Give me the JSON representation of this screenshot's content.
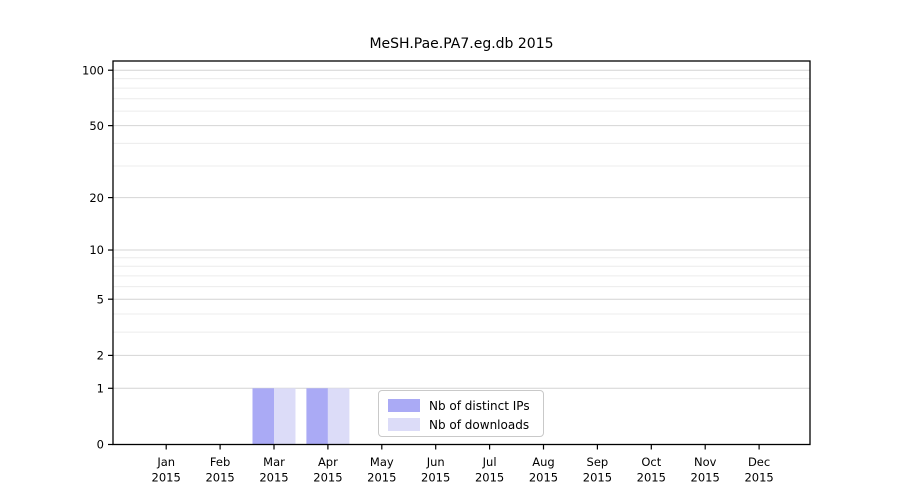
{
  "title": "MeSH.Pae.PA7.eg.db 2015",
  "chart_data": {
    "type": "bar",
    "title": "MeSH.Pae.PA7.eg.db 2015",
    "x": {
      "categories": [
        "Jan",
        "Feb",
        "Mar",
        "Apr",
        "May",
        "Jun",
        "Jul",
        "Aug",
        "Sep",
        "Oct",
        "Nov",
        "Dec"
      ],
      "year_label": "2015"
    },
    "series": [
      {
        "name": "Nb of distinct IPs",
        "color": "#aaaaf5",
        "values": [
          0,
          0,
          1,
          1,
          0,
          0,
          0,
          0,
          0,
          0,
          0,
          0
        ]
      },
      {
        "name": "Nb of downloads",
        "color": "#dcdcf8",
        "values": [
          0,
          0,
          1,
          1,
          0,
          0,
          0,
          0,
          0,
          0,
          0,
          0
        ]
      }
    ],
    "yscale": "log1p",
    "y_axis": {
      "tick_values": [
        0,
        1,
        2,
        5,
        10,
        20,
        50,
        100
      ],
      "minor_gridline_values": [
        3,
        4,
        6,
        7,
        8,
        9,
        30,
        40,
        60,
        70,
        80,
        90
      ],
      "top_value": 110
    },
    "grid": "horizontal-only",
    "legend_position": "bottom-center",
    "colors": {
      "major_grid": "#d4d4d4",
      "minor_grid": "#ececec",
      "frame": "#000000",
      "text": "#000000",
      "background": "#ffffff"
    }
  }
}
